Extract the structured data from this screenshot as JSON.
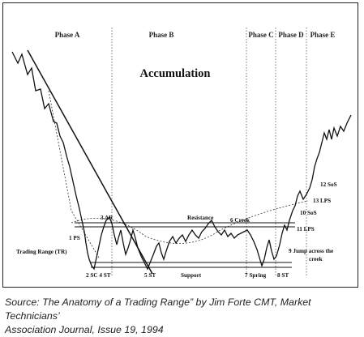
{
  "phases": [
    "Phase A",
    "Phase B",
    "Phase C",
    "Phase D",
    "Phase E"
  ],
  "title": "Accumulation",
  "labels": {
    "ar": "3 AR",
    "resistance": "Resistance",
    "creek": "6 Creek",
    "ps": "1 PS",
    "trading_range": "Trading Range (TR)",
    "sc_st": "2 SC  4 ST",
    "st5": "5 ST",
    "support": "Support",
    "spring": "7 Spring",
    "st8": "8 ST",
    "sos12": "12 SoS",
    "lps13": "13 LPS",
    "sos10": "10 SoS",
    "lps11": "11 LPS",
    "jump_line1": "9 Jump across the",
    "jump_line2": "creek"
  },
  "caption": {
    "line1": "Source: The Anatomy of a Trading Range” by Jim Forte CMT, Market Technicians’",
    "line2": "Association Journal, Issue 19, 1994"
  }
}
